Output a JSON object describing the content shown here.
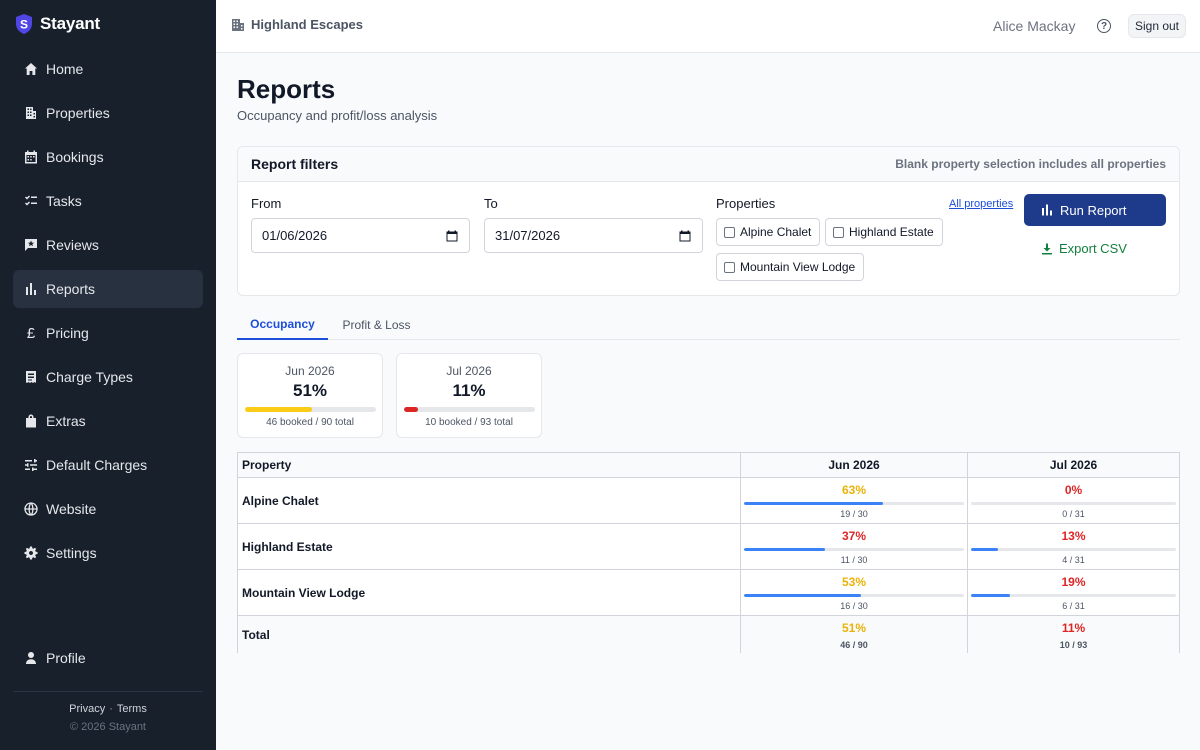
{
  "brand": {
    "name": "Stayant",
    "logo_letter": "S"
  },
  "sidebar": {
    "items": [
      {
        "label": "Home",
        "icon": "home-icon"
      },
      {
        "label": "Properties",
        "icon": "building-icon"
      },
      {
        "label": "Bookings",
        "icon": "calendar-icon"
      },
      {
        "label": "Tasks",
        "icon": "checklist-icon"
      },
      {
        "label": "Reviews",
        "icon": "review-icon"
      },
      {
        "label": "Reports",
        "icon": "bar-chart-icon",
        "active": true
      },
      {
        "label": "Pricing",
        "icon": "pound-icon"
      },
      {
        "label": "Charge Types",
        "icon": "receipt-icon"
      },
      {
        "label": "Extras",
        "icon": "bag-icon"
      },
      {
        "label": "Default Charges",
        "icon": "sliders-icon"
      },
      {
        "label": "Website",
        "icon": "globe-icon"
      },
      {
        "label": "Settings",
        "icon": "gear-icon"
      }
    ],
    "profile": "Profile",
    "privacy": "Privacy",
    "terms": "Terms",
    "separator": "·",
    "copyright": "© 2026 Stayant"
  },
  "header": {
    "org": "Highland Escapes",
    "user": "Alice Mackay",
    "help_glyph": "?",
    "signout": "Sign out"
  },
  "page": {
    "title": "Reports",
    "subtitle": "Occupancy and profit/loss analysis"
  },
  "filters": {
    "title": "Report filters",
    "hint": "Blank property selection includes all properties",
    "from_label": "From",
    "from_value": "01/06/2026",
    "to_label": "To",
    "to_value": "31/07/2026",
    "properties_label": "Properties",
    "all_properties": "All properties",
    "properties": [
      "Alpine Chalet",
      "Highland Estate",
      "Mountain View Lodge"
    ],
    "run": "Run Report",
    "export": "Export CSV"
  },
  "tabs": [
    {
      "label": "Occupancy",
      "active": true
    },
    {
      "label": "Profit & Loss",
      "active": false
    }
  ],
  "summary": [
    {
      "month": "Jun 2026",
      "percent": "51%",
      "fraction": 0.51,
      "detail": "46 booked / 90 total",
      "color": "#facc15"
    },
    {
      "month": "Jul 2026",
      "percent": "11%",
      "fraction": 0.11,
      "detail": "10 booked / 93 total",
      "color": "#dc2626"
    }
  ],
  "table": {
    "headers": [
      "Property",
      "Jun 2026",
      "Jul 2026"
    ],
    "rows": [
      {
        "property": "Alpine Chalet",
        "jun": {
          "pct": "63%",
          "fraction": 0.63,
          "nights": "19 / 30",
          "color": "#eab308"
        },
        "jul": {
          "pct": "0%",
          "fraction": 0.0,
          "nights": "0 / 31",
          "color": "#dc2626"
        }
      },
      {
        "property": "Highland Estate",
        "jun": {
          "pct": "37%",
          "fraction": 0.37,
          "nights": "11 / 30",
          "color": "#dc2626"
        },
        "jul": {
          "pct": "13%",
          "fraction": 0.13,
          "nights": "4 / 31",
          "color": "#dc2626"
        }
      },
      {
        "property": "Mountain View Lodge",
        "jun": {
          "pct": "53%",
          "fraction": 0.53,
          "nights": "16 / 30",
          "color": "#eab308"
        },
        "jul": {
          "pct": "19%",
          "fraction": 0.19,
          "nights": "6 / 31",
          "color": "#dc2626"
        }
      }
    ],
    "total": {
      "label": "Total",
      "jun": {
        "pct": "51%",
        "nights": "46 / 90",
        "color": "#eab308"
      },
      "jul": {
        "pct": "11%",
        "nights": "10 / 93",
        "color": "#dc2626"
      }
    }
  },
  "colors": {
    "sidebar": "#18202b",
    "primary": "#1e3a8a",
    "accent": "#1d4ed8",
    "success": "#15803d",
    "bar": "#3b82f6"
  }
}
